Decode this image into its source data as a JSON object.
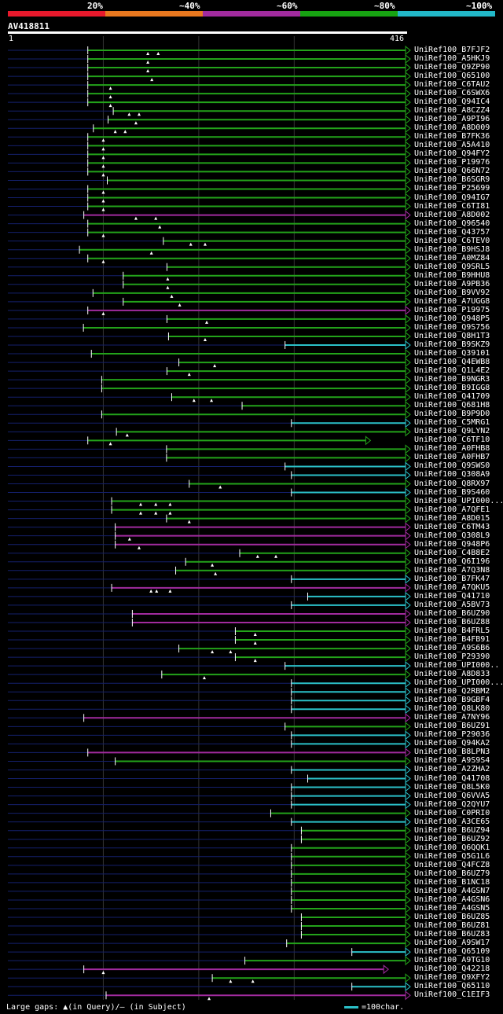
{
  "legend": [
    {
      "label": "20%",
      "color": "#e8192c"
    },
    {
      "label": "~40%",
      "color": "#e9781f"
    },
    {
      "label": "~60%",
      "color": "#a12b9e"
    },
    {
      "label": "~80%",
      "color": "#17a312"
    },
    {
      "label": "~100%",
      "color": "#22b8c8"
    }
  ],
  "query": {
    "name": "AV418811",
    "start": "1",
    "end": "416"
  },
  "colors": {
    "green": "#23a31a",
    "magenta": "#a12b9e",
    "cyan": "#2bc0c8",
    "lead": "#14206c",
    "grid": "#333333"
  },
  "hits": [
    {
      "name": "UniRef100_B7FJF2",
      "s": "0.201",
      "c": "green",
      "gaps": "0.352,0.378"
    },
    {
      "name": "UniRef100_A5HKJ9",
      "s": "0.201",
      "c": "green",
      "gaps": "0.352"
    },
    {
      "name": "UniRef100_Q9ZP90",
      "s": "0.201",
      "c": "green",
      "gaps": "0.352"
    },
    {
      "name": "UniRef100_Q65100",
      "s": "0.201",
      "c": "green",
      "gaps": "0.362"
    },
    {
      "name": "UniRef100_C6TAU2",
      "s": "0.201",
      "c": "green",
      "gaps": "0.258"
    },
    {
      "name": "UniRef100_C6SWX6",
      "s": "0.201",
      "c": "green",
      "gaps": "0.258"
    },
    {
      "name": "UniRef100_Q94IC4",
      "s": "0.201",
      "c": "green",
      "gaps": "0.258"
    },
    {
      "name": "UniRef100_A8CZZ4",
      "s": "0.265",
      "c": "green",
      "gaps": "0.305,0.330"
    },
    {
      "name": "UniRef100_A9PI96",
      "s": "0.252",
      "c": "green",
      "gaps": "0.322"
    },
    {
      "name": "UniRef100_A8D009",
      "s": "0.215",
      "c": "green",
      "gaps": "0.270,0.295"
    },
    {
      "name": "UniRef100_B7FK36",
      "s": "0.201",
      "c": "green",
      "gaps": "0.240"
    },
    {
      "name": "UniRef100_A5A410",
      "s": "0.201",
      "c": "green",
      "gaps": "0.240"
    },
    {
      "name": "UniRef100_Q94FY2",
      "s": "0.201",
      "c": "green",
      "gaps": "0.240"
    },
    {
      "name": "UniRef100_P19976",
      "s": "0.201",
      "c": "green",
      "gaps": "0.240"
    },
    {
      "name": "UniRef100_Q66N72",
      "s": "0.201",
      "c": "green",
      "gaps": "0.240"
    },
    {
      "name": "UniRef100_B6SGR9",
      "s": "0.250",
      "c": "green",
      "gaps": ""
    },
    {
      "name": "UniRef100_P25699",
      "s": "0.201",
      "c": "green",
      "gaps": "0.240"
    },
    {
      "name": "UniRef100_Q94IG7",
      "s": "0.201",
      "c": "green",
      "gaps": "0.240"
    },
    {
      "name": "UniRef100_C6TI81",
      "s": "0.201",
      "c": "green",
      "gaps": "0.240"
    },
    {
      "name": "UniRef100_A8D002",
      "s": "0.191",
      "c": "magenta",
      "gaps": "0.322,0.372"
    },
    {
      "name": "UniRef100_Q96540",
      "s": "0.201",
      "c": "green",
      "gaps": "0.382"
    },
    {
      "name": "UniRef100_Q43757",
      "s": "0.201",
      "c": "green",
      "gaps": "0.240"
    },
    {
      "name": "UniRef100_C6TEV0",
      "s": "0.391",
      "c": "green",
      "gaps": "0.460,0.496"
    },
    {
      "name": "UniRef100_B9HSJ8",
      "s": "0.180",
      "c": "green",
      "gaps": "0.361"
    },
    {
      "name": "UniRef100_A0MZ84",
      "s": "0.201",
      "c": "green",
      "gaps": "0.240"
    },
    {
      "name": "UniRef100_Q9SRL5",
      "s": "0.400",
      "c": "green",
      "gaps": ""
    },
    {
      "name": "UniRef100_B9HHU8",
      "s": "0.290",
      "c": "green",
      "gaps": "0.402"
    },
    {
      "name": "UniRef100_A9PB36",
      "s": "0.290",
      "c": "green",
      "gaps": "0.402"
    },
    {
      "name": "UniRef100_B9VV92",
      "s": "0.214",
      "c": "green",
      "gaps": "0.412"
    },
    {
      "name": "UniRef100_A7UGG8",
      "s": "0.290",
      "c": "green",
      "gaps": "0.432"
    },
    {
      "name": "UniRef100_P19975",
      "s": "0.201",
      "c": "magenta",
      "gaps": "0.240"
    },
    {
      "name": "UniRef100_Q948P5",
      "s": "0.400",
      "c": "green",
      "gaps": "0.500"
    },
    {
      "name": "UniRef100_Q9S756",
      "s": "0.190",
      "c": "green",
      "gaps": ""
    },
    {
      "name": "UniRef100_Q8H1T3",
      "s": "0.404",
      "c": "green",
      "gaps": "0.496"
    },
    {
      "name": "UniRef100_B9SKZ9",
      "s": "0.697",
      "c": "cyan",
      "gaps": ""
    },
    {
      "name": "UniRef100_Q39101",
      "s": "0.210",
      "c": "green",
      "gaps": ""
    },
    {
      "name": "UniRef100_Q4EWB8",
      "s": "0.430",
      "c": "green",
      "gaps": "0.520"
    },
    {
      "name": "UniRef100_Q1L4E2",
      "s": "0.400",
      "c": "green",
      "gaps": "0.456"
    },
    {
      "name": "UniRef100_B9NGR3",
      "s": "0.236",
      "c": "green",
      "gaps": ""
    },
    {
      "name": "UniRef100_B9IGG8",
      "s": "0.236",
      "c": "green",
      "gaps": ""
    },
    {
      "name": "UniRef100_Q41709",
      "s": "0.412",
      "c": "green",
      "gaps": "0.468,0.512"
    },
    {
      "name": "UniRef100_Q681H8",
      "s": "0.589",
      "c": "green",
      "gaps": ""
    },
    {
      "name": "UniRef100_B9P9D0",
      "s": "0.236",
      "c": "green",
      "gaps": ""
    },
    {
      "name": "UniRef100_C5MRG1",
      "s": "0.713",
      "c": "cyan",
      "gaps": ""
    },
    {
      "name": "UniRef100_Q9LYN2",
      "s": "0.273",
      "c": "green",
      "gaps": "0.300"
    },
    {
      "name": "UniRef100_C6TF10",
      "s": "0.201",
      "c": "green",
      "gaps": "0.258",
      "partial": "0.900"
    },
    {
      "name": "UniRef100_A0FHB8",
      "s": "0.399",
      "c": "green",
      "gaps": ""
    },
    {
      "name": "UniRef100_A0FHB7",
      "s": "0.399",
      "c": "green",
      "gaps": ""
    },
    {
      "name": "UniRef100_Q9SWS0",
      "s": "0.697",
      "c": "cyan",
      "gaps": ""
    },
    {
      "name": "UniRef100_Q308A9",
      "s": "0.713",
      "c": "cyan",
      "gaps": ""
    },
    {
      "name": "UniRef100_Q8RX97",
      "s": "0.456",
      "c": "green",
      "gaps": "0.534"
    },
    {
      "name": "UniRef100_B9S460",
      "s": "0.713",
      "c": "cyan",
      "gaps": ""
    },
    {
      "name": "UniRef100_UPI000...",
      "s": "0.261",
      "c": "green",
      "gaps": "0.334,0.372,0.408"
    },
    {
      "name": "UniRef100_A7QFE1",
      "s": "0.261",
      "c": "green",
      "gaps": "0.334,0.372,0.408"
    },
    {
      "name": "UniRef100_A8D015",
      "s": "0.399",
      "c": "green",
      "gaps": "0.456"
    },
    {
      "name": "UniRef100_C6TM43",
      "s": "0.270",
      "c": "magenta",
      "gaps": ""
    },
    {
      "name": "UniRef100_Q308L9",
      "s": "0.270",
      "c": "magenta",
      "gaps": "0.306"
    },
    {
      "name": "UniRef100_Q948P6",
      "s": "0.270",
      "c": "magenta",
      "gaps": "0.330"
    },
    {
      "name": "UniRef100_C4B8E2",
      "s": "0.583",
      "c": "green",
      "gaps": "0.628,0.674"
    },
    {
      "name": "UniRef100_Q6I196",
      "s": "0.447",
      "c": "green",
      "gaps": "0.514"
    },
    {
      "name": "UniRef100_A7Q3N8",
      "s": "0.422",
      "c": "green",
      "gaps": "0.522"
    },
    {
      "name": "UniRef100_B7FK47",
      "s": "0.713",
      "c": "cyan",
      "gaps": ""
    },
    {
      "name": "UniRef100_A7QKU5",
      "s": "0.261",
      "c": "magenta",
      "gaps": "0.360,0.374,0.408"
    },
    {
      "name": "UniRef100_Q41710",
      "s": "0.754",
      "c": "cyan",
      "gaps": ""
    },
    {
      "name": "UniRef100_A5BV73",
      "s": "0.713",
      "c": "cyan",
      "gaps": ""
    },
    {
      "name": "UniRef100_B6UZ90",
      "s": "0.313",
      "c": "magenta",
      "gaps": ""
    },
    {
      "name": "UniRef100_B6UZ88",
      "s": "0.313",
      "c": "magenta",
      "gaps": ""
    },
    {
      "name": "UniRef100_B4FRL5",
      "s": "0.572",
      "c": "green",
      "gaps": "0.622"
    },
    {
      "name": "UniRef100_B4FB91",
      "s": "0.572",
      "c": "green",
      "gaps": "0.622"
    },
    {
      "name": "UniRef100_A9S6B6",
      "s": "0.430",
      "c": "green",
      "gaps": "0.514,0.560"
    },
    {
      "name": "UniRef100_P29390",
      "s": "0.572",
      "c": "green",
      "gaps": "0.622"
    },
    {
      "name": "UniRef100_UPI000..",
      "s": "0.697",
      "c": "cyan",
      "gaps": ""
    },
    {
      "name": "UniRef100_A8D833",
      "s": "0.387",
      "c": "green",
      "gaps": "0.494"
    },
    {
      "name": "UniRef100_UPI000...",
      "s": "0.713",
      "c": "cyan",
      "gaps": ""
    },
    {
      "name": "UniRef100_Q2RBM2",
      "s": "0.713",
      "c": "cyan",
      "gaps": ""
    },
    {
      "name": "UniRef100_B9GBF4",
      "s": "0.713",
      "c": "cyan",
      "gaps": ""
    },
    {
      "name": "UniRef100_Q8LK80",
      "s": "0.713",
      "c": "cyan",
      "gaps": ""
    },
    {
      "name": "UniRef100_A7NY96",
      "s": "0.191",
      "c": "magenta",
      "gaps": ""
    },
    {
      "name": "UniRef100_B6UZ91",
      "s": "0.697",
      "c": "green",
      "gaps": ""
    },
    {
      "name": "UniRef100_P29036",
      "s": "0.713",
      "c": "cyan",
      "gaps": ""
    },
    {
      "name": "UniRef100_Q94KA2",
      "s": "0.713",
      "c": "cyan",
      "gaps": ""
    },
    {
      "name": "UniRef100_B8LPN3",
      "s": "0.201",
      "c": "magenta",
      "gaps": ""
    },
    {
      "name": "UniRef100_A9S9S4",
      "s": "0.270",
      "c": "green",
      "gaps": ""
    },
    {
      "name": "UniRef100_A2ZHA2",
      "s": "0.713",
      "c": "cyan",
      "gaps": ""
    },
    {
      "name": "UniRef100_Q41708",
      "s": "0.754",
      "c": "cyan",
      "gaps": ""
    },
    {
      "name": "UniRef100_Q8L5K0",
      "s": "0.713",
      "c": "cyan",
      "gaps": ""
    },
    {
      "name": "UniRef100_Q6VVA5",
      "s": "0.713",
      "c": "cyan",
      "gaps": ""
    },
    {
      "name": "UniRef100_Q2QYU7",
      "s": "0.713",
      "c": "cyan",
      "gaps": ""
    },
    {
      "name": "UniRef100_C0PRI0",
      "s": "0.661",
      "c": "green",
      "gaps": ""
    },
    {
      "name": "UniRef100_A3CE65",
      "s": "0.713",
      "c": "cyan",
      "gaps": ""
    },
    {
      "name": "UniRef100_B6UZ94",
      "s": "0.738",
      "c": "green",
      "gaps": ""
    },
    {
      "name": "UniRef100_B6UZ92",
      "s": "0.738",
      "c": "green",
      "gaps": ""
    },
    {
      "name": "UniRef100_Q6QQK1",
      "s": "0.713",
      "c": "green",
      "gaps": ""
    },
    {
      "name": "UniRef100_Q5G1L6",
      "s": "0.713",
      "c": "green",
      "gaps": ""
    },
    {
      "name": "UniRef100_Q4FCZ8",
      "s": "0.713",
      "c": "green",
      "gaps": ""
    },
    {
      "name": "UniRef100_B6UZ79",
      "s": "0.713",
      "c": "green",
      "gaps": ""
    },
    {
      "name": "UniRef100_B1NC18",
      "s": "0.713",
      "c": "green",
      "gaps": ""
    },
    {
      "name": "UniRef100_A4GSN7",
      "s": "0.713",
      "c": "green",
      "gaps": ""
    },
    {
      "name": "UniRef100_A4GSN6",
      "s": "0.713",
      "c": "green",
      "gaps": ""
    },
    {
      "name": "UniRef100_A4GSN5",
      "s": "0.713",
      "c": "green",
      "gaps": ""
    },
    {
      "name": "UniRef100_B6UZ85",
      "s": "0.738",
      "c": "green",
      "gaps": ""
    },
    {
      "name": "UniRef100_B6UZ81",
      "s": "0.738",
      "c": "green",
      "gaps": ""
    },
    {
      "name": "UniRef100_B6UZ83",
      "s": "0.738",
      "c": "green",
      "gaps": ""
    },
    {
      "name": "UniRef100_A9SW17",
      "s": "0.701",
      "c": "green",
      "gaps": ""
    },
    {
      "name": "UniRef100_Q65109",
      "s": "0.865",
      "c": "cyan",
      "gaps": ""
    },
    {
      "name": "UniRef100_A9TG10",
      "s": "0.596",
      "c": "green",
      "gaps": ""
    },
    {
      "name": "UniRef100_Q42218",
      "s": "0.191",
      "c": "magenta",
      "gaps": "0.240",
      "partial": "0.945"
    },
    {
      "name": "UniRef100_Q9XFY2",
      "s": "0.514",
      "c": "green",
      "gaps": "0.560,0.616"
    },
    {
      "name": "UniRef100_Q65110",
      "s": "0.865",
      "c": "cyan",
      "gaps": ""
    },
    {
      "name": "UniRef100_C1EIF3",
      "s": "0.247",
      "c": "magenta",
      "gaps": "0.506"
    }
  ],
  "footer": {
    "gaps_text": "Large gaps: ▲(in Query)/– (in Subject)",
    "scale_text": "=100char."
  }
}
